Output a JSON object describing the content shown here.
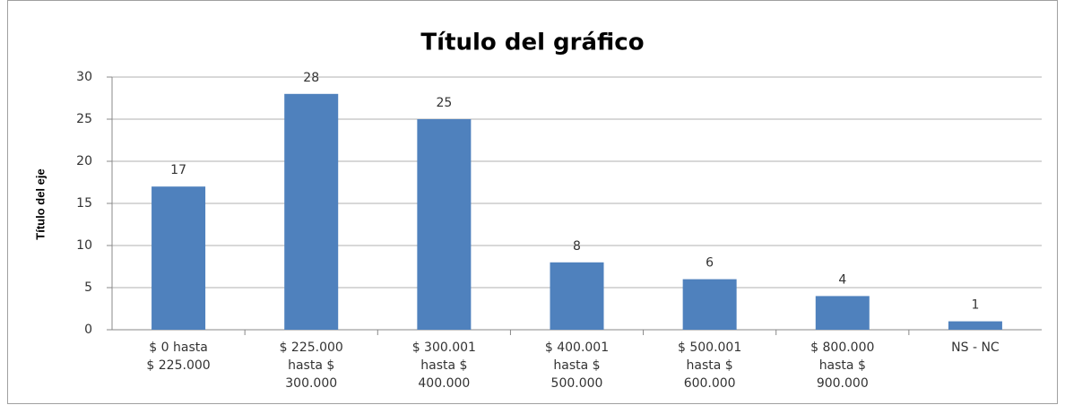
{
  "chart_data": {
    "type": "bar",
    "title": "Título del gráfico",
    "y_label": "Título del eje",
    "categories": [
      "$ 0  hasta\n$ 225.000",
      "$ 225.000\nhasta $\n300.000",
      "$ 300.001\nhasta $\n400.000",
      "$ 400.001\nhasta $\n500.000",
      "$ 500.001\nhasta $\n600.000",
      "$ 800.000\nhasta $\n900.000",
      "NS - NC"
    ],
    "values": [
      17,
      28,
      25,
      8,
      6,
      4,
      1
    ],
    "color": "#4f81bd",
    "ylim": [
      0,
      30
    ],
    "yticks": [
      0,
      5,
      10,
      15,
      20,
      25,
      30
    ],
    "grid": true
  }
}
